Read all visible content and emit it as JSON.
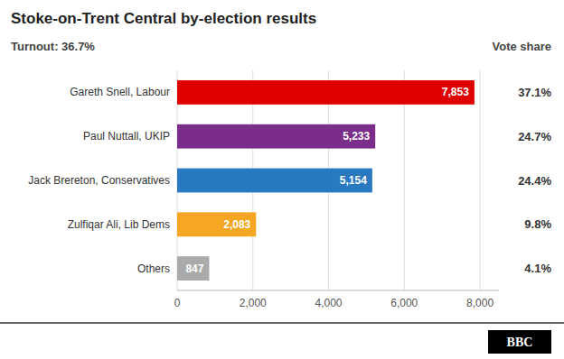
{
  "chart_data": {
    "type": "bar",
    "orientation": "horizontal",
    "title": "Stoke-on-Trent Central by-election results",
    "subtitle": "Turnout: 36.7%",
    "categories": [
      "Gareth Snell, Labour",
      "Paul Nuttall, UKIP",
      "Jack Brereton, Conservatives",
      "Zulfiqar Ali, Lib Dems",
      "Others"
    ],
    "values": [
      7853,
      5233,
      5154,
      2083,
      847
    ],
    "value_labels": [
      "7,853",
      "5,233",
      "5,154",
      "2,083",
      "847"
    ],
    "data_labels": true,
    "colors": [
      "#e00000",
      "#7b2d8b",
      "#2879c0",
      "#f5a623",
      "#aaaaaa"
    ],
    "xlim": [
      0,
      8500
    ],
    "xticks": [
      0,
      {
        "value": 2000,
        "label": "2,000"
      },
      {
        "value": 4000,
        "label": "4,000"
      },
      {
        "value": 6000,
        "label": "6,000"
      },
      {
        "value": 8000,
        "label": "8,000"
      }
    ],
    "grid": true,
    "vote_share_label": "Vote share",
    "vote_shares": [
      "37.1%",
      "24.7%",
      "24.4%",
      "9.8%",
      "4.1%"
    ],
    "annotations": [
      "BBC"
    ]
  }
}
